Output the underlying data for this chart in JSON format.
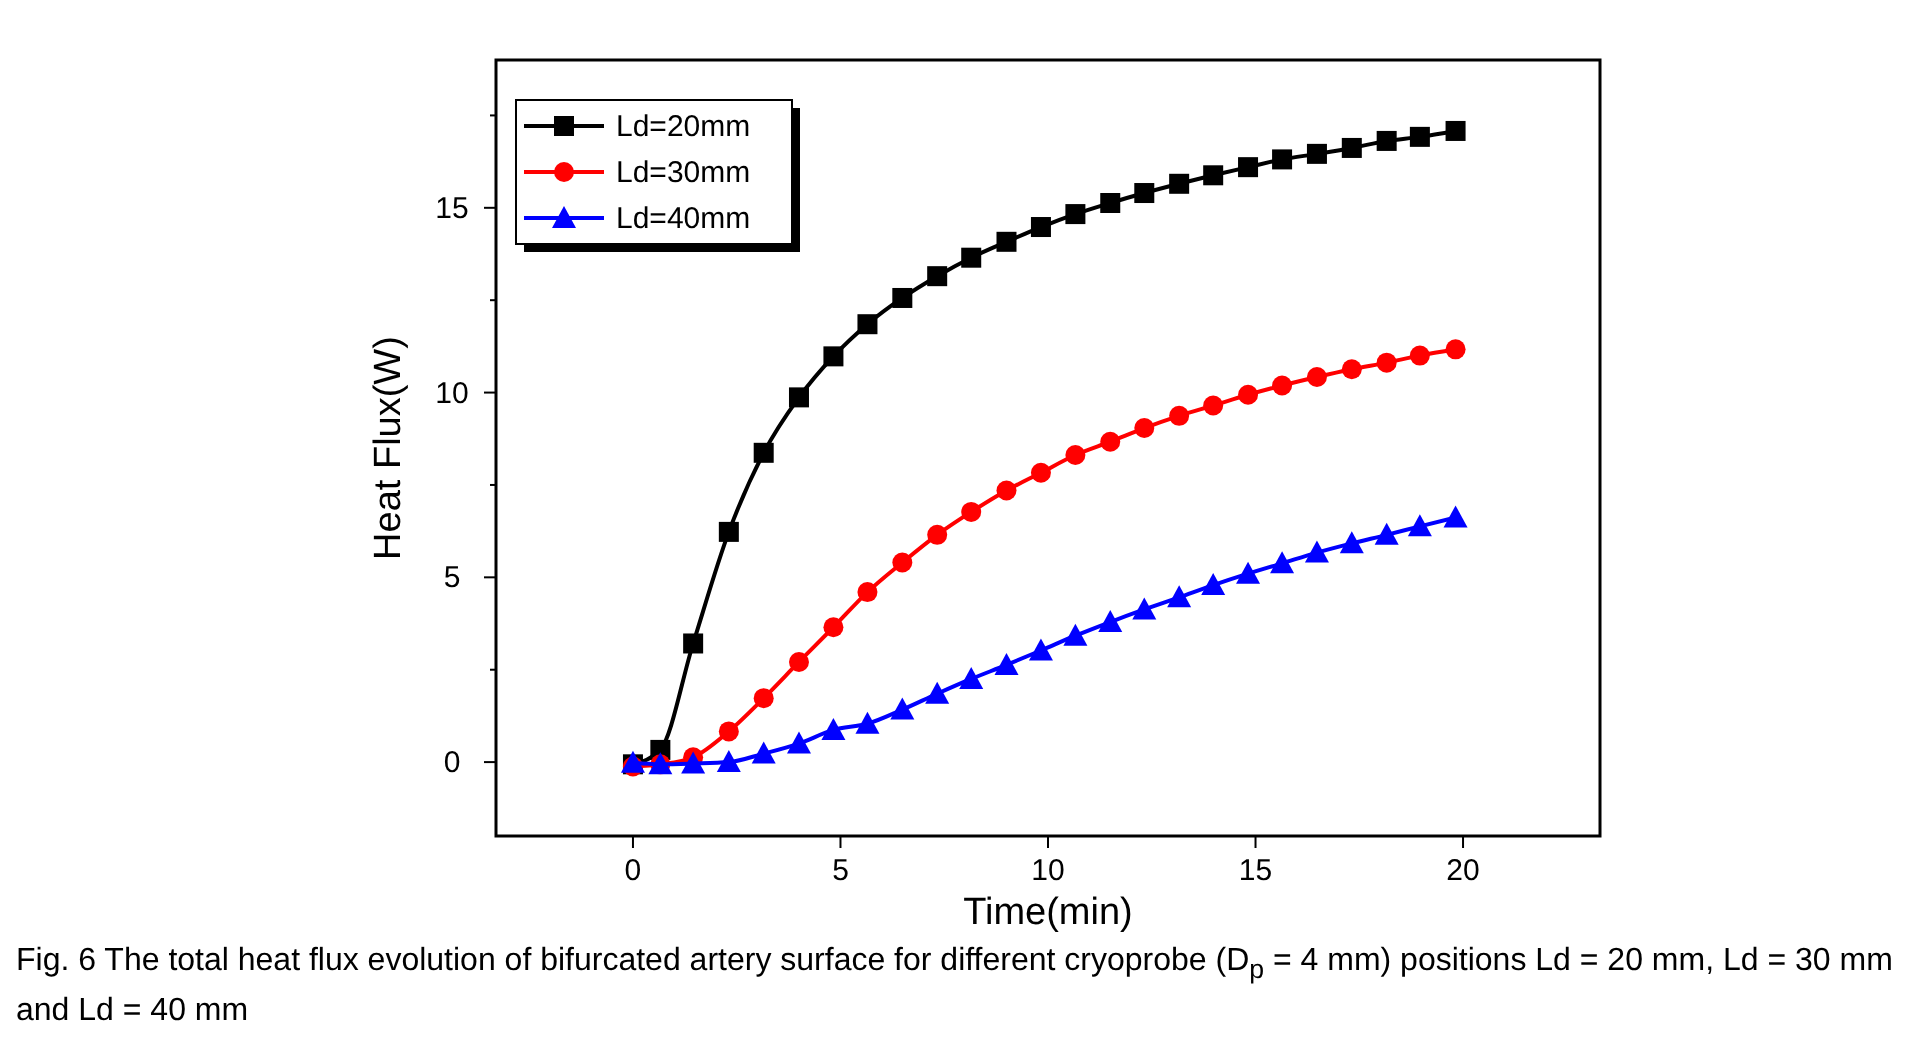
{
  "chart_data": {
    "type": "line",
    "xlabel": "Time(min)",
    "ylabel": "Heat Flux(W)",
    "annotations": [
      "Fig. 6  The total heat flux evolution of bifurcated artery surface for different cryoprobe (D$_{p}$ = 4 mm) positions Ld = 20 mm, Ld = 30 mm and Ld = 40 mm"
    ],
    "x": [
      0,
      0.66,
      1.45,
      2.31,
      3.15,
      4.0,
      4.83,
      5.65,
      6.49,
      7.33,
      8.15,
      9.0,
      9.83,
      10.66,
      11.5,
      12.32,
      13.16,
      13.98,
      14.82,
      15.64,
      16.48,
      17.32,
      18.16,
      18.96,
      19.82
    ],
    "series": [
      {
        "name": "Ld=20mm",
        "color": "#000000",
        "marker": "square",
        "values": [
          -0.06,
          0.33,
          3.21,
          6.23,
          8.37,
          9.87,
          10.98,
          11.85,
          12.56,
          13.15,
          13.65,
          14.08,
          14.48,
          14.83,
          15.13,
          15.4,
          15.65,
          15.88,
          16.1,
          16.31,
          16.46,
          16.62,
          16.81,
          16.92,
          17.08
        ]
      },
      {
        "name": "Ld=30mm",
        "color": "#ff0000",
        "marker": "circle",
        "values": [
          -0.12,
          -0.06,
          0.13,
          0.83,
          1.73,
          2.71,
          3.65,
          4.6,
          5.4,
          6.15,
          6.77,
          7.35,
          7.83,
          8.31,
          8.67,
          9.04,
          9.37,
          9.65,
          9.94,
          10.19,
          10.42,
          10.63,
          10.81,
          11.0,
          11.17
        ]
      },
      {
        "name": "Ld=40mm",
        "color": "#0000ff",
        "marker": "triangle",
        "values": [
          -0.02,
          -0.06,
          -0.04,
          0,
          0.23,
          0.5,
          0.87,
          1.04,
          1.42,
          1.85,
          2.25,
          2.63,
          3.02,
          3.42,
          3.79,
          4.13,
          4.46,
          4.79,
          5.1,
          5.38,
          5.67,
          5.92,
          6.15,
          6.38,
          6.62
        ]
      }
    ],
    "xlim": [
      -3.3,
      23.3
    ],
    "ylim": [
      -2,
      19
    ],
    "xticks": [
      0,
      5,
      10,
      15,
      20
    ],
    "yticks": [
      0,
      {
        "value": 2.5,
        "label": null
      },
      5,
      {
        "value": 7.5,
        "label": null
      },
      10,
      {
        "value": 12.5,
        "label": null
      },
      15,
      {
        "value": 17.5,
        "label": null
      }
    ],
    "legend": "top left",
    "grid": false,
    "line_style": "solid"
  }
}
